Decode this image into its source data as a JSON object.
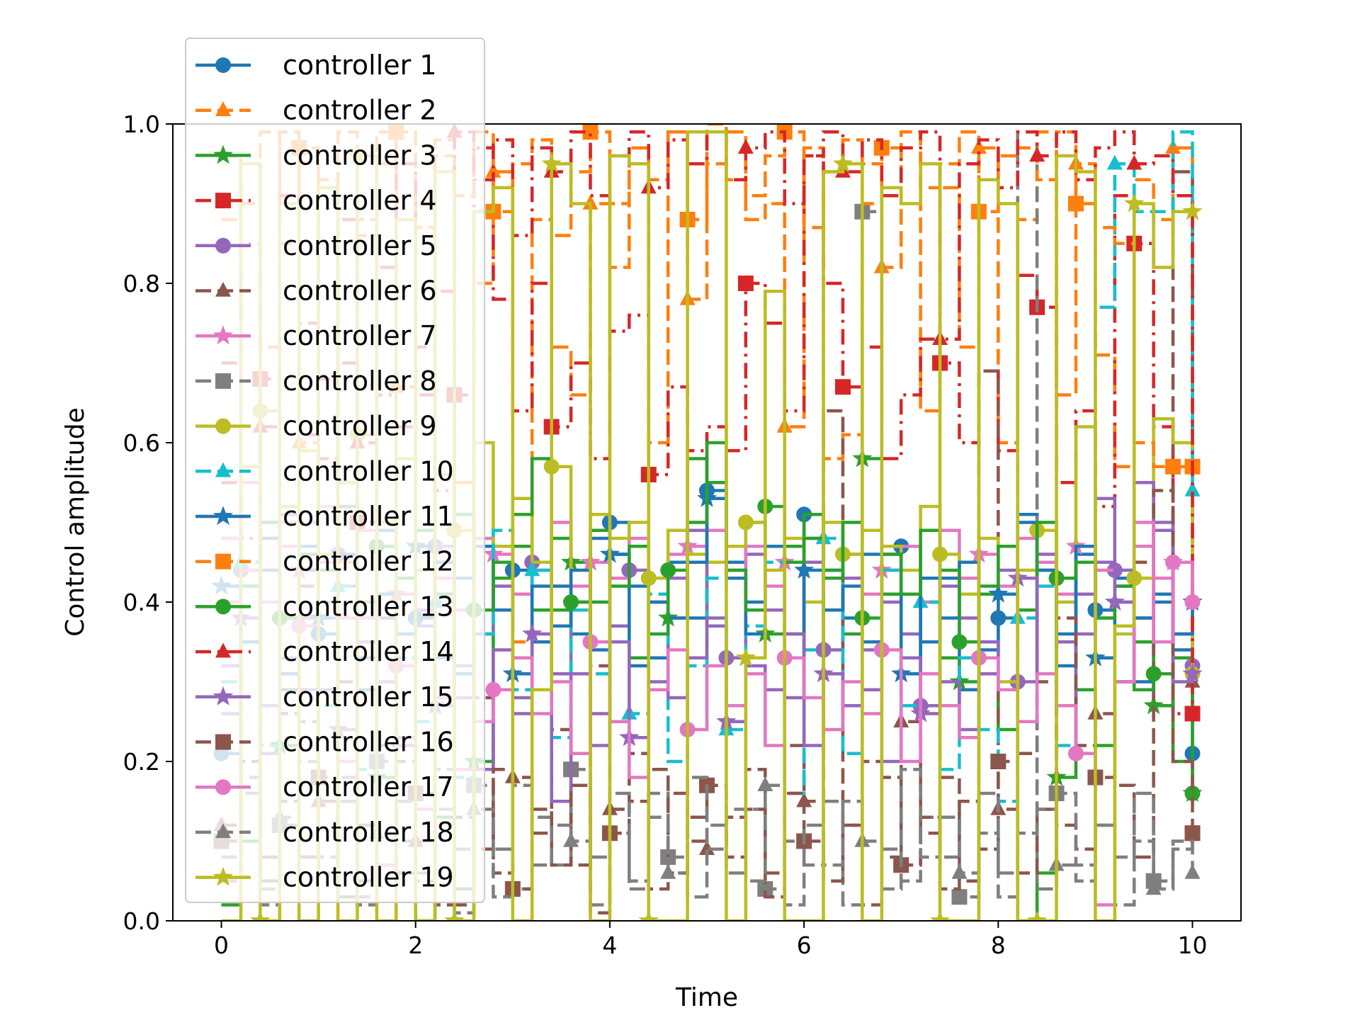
{
  "chart_data": {
    "type": "line",
    "title": "",
    "xlabel": "Time",
    "ylabel": "Control amplitude",
    "xlim": [
      -0.5,
      10.5
    ],
    "ylim": [
      0.0,
      1.0
    ],
    "xticks": [
      "0",
      "2",
      "4",
      "6",
      "8",
      "10"
    ],
    "yticks": [
      "0.0",
      "0.2",
      "0.4",
      "0.6",
      "0.8",
      "1.0"
    ],
    "step": "post",
    "grid": false,
    "legend_position": "upper left",
    "x": [
      0.0,
      0.2,
      0.4,
      0.6,
      0.8,
      1.0,
      1.2,
      1.4,
      1.6,
      1.8,
      2.0,
      2.2,
      2.4,
      2.6,
      2.8,
      3.0,
      3.2,
      3.4,
      3.6,
      3.8,
      4.0,
      4.2,
      4.4,
      4.6,
      4.8,
      5.0,
      5.2,
      5.4,
      5.6,
      5.8,
      6.0,
      6.2,
      6.4,
      6.6,
      6.8,
      7.0,
      7.2,
      7.4,
      7.6,
      7.8,
      8.0,
      8.2,
      8.4,
      8.6,
      8.8,
      9.0,
      9.2,
      9.4,
      9.6,
      9.8,
      10.0
    ],
    "series": [
      {
        "name": "controller 1",
        "color": "#1f77b4",
        "dash": "solid",
        "marker": "circle",
        "values": [
          0.21,
          0.38,
          0.44,
          0.29,
          0.47,
          0.36,
          0.42,
          0.33,
          0.49,
          0.41,
          0.38,
          0.45,
          0.31,
          0.47,
          0.39,
          0.44,
          0.35,
          0.42,
          0.36,
          0.48,
          0.5,
          0.42,
          0.33,
          0.45,
          0.38,
          0.54,
          0.45,
          0.4,
          0.47,
          0.36,
          0.51,
          0.44,
          0.38,
          0.46,
          0.41,
          0.47,
          0.35,
          0.43,
          0.29,
          0.41,
          0.38,
          0.51,
          0.44,
          0.32,
          0.46,
          0.39,
          0.43,
          0.3,
          0.41,
          0.34,
          0.21
        ]
      },
      {
        "name": "controller 2",
        "color": "#ff7f0e",
        "dash": "dash",
        "marker": "triangle",
        "values": [
          0.88,
          0.95,
          0.72,
          0.99,
          0.6,
          0.93,
          0.45,
          0.86,
          0.99,
          0.67,
          0.9,
          0.98,
          0.55,
          0.8,
          0.94,
          0.35,
          0.88,
          0.72,
          0.66,
          0.9,
          0.82,
          0.95,
          0.6,
          0.99,
          0.78,
          1.0,
          0.93,
          0.88,
          0.9,
          0.62,
          0.97,
          0.58,
          0.61,
          0.95,
          0.82,
          0.99,
          0.64,
          0.92,
          0.72,
          0.97,
          0.6,
          0.88,
          0.99,
          0.66,
          0.95,
          0.71,
          0.57,
          0.93,
          0.88,
          0.97,
          0.57
        ]
      },
      {
        "name": "controller 3",
        "color": "#2ca02c",
        "dash": "solid",
        "marker": "star",
        "values": [
          0.02,
          0.1,
          0.05,
          0.22,
          0.08,
          0.15,
          0.03,
          0.12,
          0.18,
          0.06,
          0.0,
          0.13,
          0.04,
          0.2,
          0.43,
          0.47,
          0.39,
          0.48,
          0.45,
          0.4,
          0.46,
          0.33,
          0.4,
          0.38,
          0.58,
          0.55,
          0.43,
          0.5,
          0.36,
          0.47,
          0.51,
          0.44,
          0.36,
          0.58,
          0.41,
          0.47,
          0.4,
          0.33,
          0.3,
          0.41,
          0.24,
          0.0,
          0.06,
          0.18,
          0.29,
          0.22,
          0.3,
          0.35,
          0.27,
          0.33,
          0.16
        ]
      },
      {
        "name": "controller 4",
        "color": "#d62728",
        "dash": "dashdot",
        "marker": "square",
        "values": [
          0.55,
          0.48,
          0.68,
          0.52,
          0.61,
          0.58,
          0.7,
          0.5,
          0.66,
          0.62,
          0.72,
          0.54,
          0.66,
          0.97,
          0.78,
          0.64,
          0.8,
          0.62,
          0.7,
          0.58,
          0.74,
          0.76,
          0.56,
          0.67,
          0.59,
          0.62,
          0.59,
          0.8,
          0.75,
          0.64,
          0.96,
          0.8,
          0.67,
          0.72,
          0.58,
          0.66,
          0.73,
          0.7,
          0.6,
          0.69,
          0.59,
          0.81,
          0.77,
          0.55,
          0.64,
          0.52,
          0.91,
          0.85,
          0.62,
          0.26,
          0.26
        ]
      },
      {
        "name": "controller 5",
        "color": "#9467bd",
        "dash": "solid",
        "marker": "circle",
        "values": [
          0.32,
          0.44,
          0.27,
          0.51,
          0.38,
          0.29,
          0.46,
          0.35,
          0.41,
          0.23,
          0.39,
          0.47,
          0.28,
          0.36,
          0.42,
          0.26,
          0.45,
          0.31,
          0.4,
          0.22,
          0.37,
          0.44,
          0.29,
          0.43,
          0.49,
          0.37,
          0.33,
          0.46,
          0.39,
          0.28,
          0.45,
          0.34,
          0.43,
          0.29,
          0.4,
          0.36,
          0.27,
          0.42,
          0.38,
          0.31,
          0.44,
          0.3,
          0.46,
          0.35,
          0.41,
          0.53,
          0.44,
          0.38,
          0.49,
          0.36,
          0.32
        ]
      },
      {
        "name": "controller 6",
        "color": "#8c564b",
        "dash": "dash",
        "marker": "triangle",
        "values": [
          0.12,
          0.35,
          0.08,
          0.26,
          0.42,
          0.15,
          0.3,
          0.05,
          0.38,
          0.2,
          0.1,
          0.33,
          0.02,
          0.28,
          0.06,
          0.18,
          0.11,
          0.24,
          0.07,
          0.32,
          0.14,
          0.21,
          0.04,
          0.16,
          0.1,
          0.09,
          0.13,
          0.19,
          0.06,
          0.22,
          0.15,
          0.64,
          0.12,
          0.2,
          0.08,
          0.25,
          0.11,
          0.18,
          0.05,
          0.69,
          0.14,
          0.21,
          0.3,
          0.12,
          0.09,
          0.26,
          0.17,
          0.08,
          0.35,
          0.94,
          0.3
        ]
      },
      {
        "name": "controller 7",
        "color": "#e377c2",
        "dash": "solid",
        "marker": "star",
        "values": [
          0.4,
          0.55,
          0.5,
          0.47,
          0.44,
          0.52,
          0.38,
          0.49,
          0.45,
          0.41,
          0.47,
          0.43,
          0.39,
          0.48,
          0.46,
          0.41,
          0.44,
          0.5,
          0.42,
          0.45,
          0.43,
          0.48,
          0.4,
          0.46,
          0.47,
          0.49,
          0.44,
          0.47,
          0.42,
          0.45,
          0.48,
          0.43,
          0.46,
          0.41,
          0.44,
          0.47,
          0.4,
          0.49,
          0.43,
          0.46,
          0.42,
          0.48,
          0.45,
          0.41,
          0.47,
          0.44,
          0.4,
          0.47,
          0.43,
          0.45,
          0.4
        ]
      },
      {
        "name": "controller 8",
        "color": "#7f7f7f",
        "dash": "dash",
        "marker": "square",
        "values": [
          0.05,
          0.18,
          0.02,
          0.12,
          0.25,
          0.08,
          0.15,
          0.03,
          0.2,
          0.1,
          0.06,
          0.14,
          0.01,
          0.17,
          0.09,
          0.04,
          0.13,
          0.07,
          0.19,
          0.02,
          0.11,
          0.05,
          0.16,
          0.08,
          0.03,
          0.12,
          0.06,
          0.14,
          0.04,
          0.1,
          0.07,
          0.15,
          0.02,
          0.89,
          0.09,
          0.05,
          0.13,
          0.08,
          0.03,
          0.11,
          0.06,
          0.99,
          0.04,
          0.16,
          0.07,
          0.12,
          0.02,
          0.1,
          0.05,
          0.09,
          0.11
        ]
      },
      {
        "name": "controller 9",
        "color": "#bcbd22",
        "dash": "solid",
        "marker": "circle",
        "values": [
          0.62,
          0.57,
          0.64,
          0.52,
          0.59,
          0.46,
          0.55,
          0.61,
          0.5,
          0.58,
          0.44,
          0.56,
          0.49,
          0.6,
          0.47,
          0.53,
          0.45,
          0.57,
          0.39,
          0.51,
          0.48,
          0.5,
          0.43,
          0.49,
          0.46,
          0.45,
          0.47,
          0.5,
          0.44,
          0.48,
          0.4,
          0.5,
          0.46,
          0.49,
          0.47,
          0.44,
          0.52,
          0.46,
          0.41,
          0.48,
          0.3,
          0.44,
          0.49,
          0.4,
          0.62,
          0.38,
          0.36,
          0.43,
          0.63,
          0.6,
          0.31
        ]
      },
      {
        "name": "controller 10",
        "color": "#17becf",
        "dash": "dash",
        "marker": "triangle",
        "values": [
          0.3,
          0.45,
          0.22,
          0.38,
          0.5,
          0.27,
          0.42,
          0.19,
          0.47,
          0.33,
          0.25,
          0.4,
          0.18,
          0.36,
          0.49,
          0.29,
          0.44,
          0.23,
          0.39,
          0.31,
          0.46,
          0.26,
          0.41,
          0.2,
          0.32,
          0.43,
          0.24,
          0.37,
          0.45,
          0.16,
          0.34,
          0.48,
          0.21,
          0.35,
          0.44,
          0.27,
          0.4,
          0.19,
          0.33,
          0.24,
          0.15,
          0.38,
          0.42,
          0.22,
          0.47,
          0.77,
          0.95,
          0.89,
          0.89,
          0.99,
          0.54
        ]
      },
      {
        "name": "controller 11",
        "color": "#1f77b4",
        "dash": "solid",
        "marker": "star",
        "values": [
          0.42,
          0.35,
          0.48,
          0.31,
          0.44,
          0.38,
          0.46,
          0.29,
          0.41,
          0.36,
          0.47,
          0.33,
          0.43,
          0.39,
          0.45,
          0.31,
          0.42,
          0.37,
          0.44,
          0.34,
          0.46,
          0.32,
          0.4,
          0.38,
          0.45,
          0.53,
          0.43,
          0.36,
          0.47,
          0.33,
          0.44,
          0.39,
          0.42,
          0.35,
          0.46,
          0.31,
          0.43,
          0.38,
          0.45,
          0.34,
          0.41,
          0.5,
          0.44,
          0.36,
          0.47,
          0.33,
          0.42,
          0.38,
          0.4,
          0.36,
          0.4
        ]
      },
      {
        "name": "controller 12",
        "color": "#ff7f0e",
        "dash": "dash",
        "marker": "square",
        "values": [
          0.96,
          0.9,
          0.99,
          0.85,
          0.97,
          0.92,
          0.99,
          0.88,
          0.95,
          0.99,
          0.87,
          0.96,
          0.91,
          0.99,
          0.89,
          0.95,
          0.98,
          0.86,
          0.94,
          0.99,
          0.9,
          0.97,
          0.93,
          0.99,
          0.88,
          0.95,
          0.99,
          0.91,
          0.96,
          0.99,
          0.87,
          0.94,
          0.98,
          0.9,
          0.97,
          0.99,
          0.92,
          0.95,
          0.99,
          0.89,
          0.96,
          0.97,
          0.93,
          0.99,
          0.9,
          0.87,
          0.85,
          0.6,
          0.57,
          0.57,
          0.57
        ]
      },
      {
        "name": "controller 13",
        "color": "#2ca02c",
        "dash": "solid",
        "marker": "circle",
        "values": [
          0.48,
          0.42,
          0.5,
          0.38,
          0.46,
          0.44,
          0.52,
          0.4,
          0.47,
          0.43,
          0.49,
          0.41,
          0.51,
          0.39,
          0.45,
          0.51,
          0.58,
          0.39,
          0.4,
          0.49,
          0.42,
          0.47,
          0.36,
          0.44,
          0.5,
          0.6,
          0.44,
          0.39,
          0.52,
          0.45,
          0.48,
          0.43,
          0.5,
          0.38,
          0.46,
          0.41,
          0.49,
          0.44,
          0.35,
          0.42,
          0.47,
          0.39,
          0.5,
          0.43,
          0.45,
          0.38,
          0.42,
          0.29,
          0.31,
          0.2,
          0.16
        ]
      },
      {
        "name": "controller 14",
        "color": "#d62728",
        "dash": "dashdot",
        "marker": "triangle",
        "values": [
          0.7,
          0.85,
          0.62,
          0.91,
          0.75,
          0.68,
          0.88,
          0.6,
          0.82,
          0.95,
          0.66,
          0.79,
          0.99,
          0.93,
          0.98,
          0.86,
          0.97,
          0.94,
          0.99,
          0.91,
          0.96,
          0.99,
          0.92,
          0.98,
          0.95,
          0.99,
          0.93,
          0.97,
          0.99,
          0.9,
          0.96,
          0.99,
          0.94,
          0.98,
          0.91,
          0.97,
          0.99,
          0.73,
          0.95,
          0.98,
          0.92,
          0.99,
          0.96,
          0.99,
          0.93,
          0.97,
          0.99,
          0.95,
          0.96,
          0.91,
          0.26
        ]
      },
      {
        "name": "controller 15",
        "color": "#9467bd",
        "dash": "solid",
        "marker": "star",
        "values": [
          0.26,
          0.38,
          0.21,
          0.33,
          0.29,
          0.4,
          0.24,
          0.35,
          0.3,
          0.22,
          0.37,
          0.27,
          0.32,
          0.19,
          0.34,
          0.28,
          0.36,
          0.15,
          0.31,
          0.26,
          0.35,
          0.23,
          0.3,
          0.28,
          0.33,
          0.38,
          0.25,
          0.32,
          0.29,
          0.36,
          0.22,
          0.31,
          0.27,
          0.34,
          0.2,
          0.33,
          0.26,
          0.3,
          0.24,
          0.35,
          0.29,
          0.43,
          0.31,
          0.27,
          0.36,
          0.45,
          0.4,
          0.55,
          0.5,
          0.3,
          0.31
        ]
      },
      {
        "name": "controller 16",
        "color": "#8c564b",
        "dash": "dash",
        "marker": "square",
        "values": [
          0.1,
          0.2,
          0.05,
          0.15,
          0.08,
          0.18,
          0.03,
          0.12,
          0.22,
          0.06,
          0.16,
          0.02,
          0.13,
          0.09,
          0.19,
          0.04,
          0.14,
          0.07,
          0.17,
          0.01,
          0.11,
          0.15,
          0.19,
          0.06,
          0.13,
          0.17,
          0.08,
          0.14,
          0.03,
          0.16,
          0.1,
          0.05,
          0.12,
          0.02,
          0.18,
          0.07,
          0.13,
          0.04,
          0.15,
          0.09,
          0.2,
          0.06,
          0.14,
          0.38,
          0.22,
          0.18,
          0.3,
          0.45,
          0.54,
          0.2,
          0.11
        ]
      },
      {
        "name": "controller 17",
        "color": "#e377c2",
        "dash": "solid",
        "marker": "circle",
        "values": [
          0.48,
          0.44,
          0.4,
          0.5,
          0.37,
          0.45,
          0.2,
          0.38,
          0.07,
          0.32,
          0.14,
          0.28,
          0.19,
          0.25,
          0.29,
          0.33,
          0.26,
          0.3,
          0.21,
          0.35,
          0.25,
          0.18,
          0.29,
          0.34,
          0.24,
          0.32,
          0.27,
          0.31,
          0.22,
          0.33,
          0.28,
          0.24,
          0.3,
          0.26,
          0.34,
          0.2,
          0.31,
          0.27,
          0.23,
          0.33,
          0.29,
          0.25,
          0.31,
          0.27,
          0.21,
          0.02,
          0.3,
          0.5,
          0.35,
          0.45,
          0.4
        ]
      },
      {
        "name": "controller 18",
        "color": "#7f7f7f",
        "dash": "dash",
        "marker": "triangle",
        "values": [
          0.08,
          0.16,
          0.04,
          0.13,
          0.2,
          0.06,
          0.18,
          0.02,
          0.11,
          0.15,
          0.05,
          0.19,
          0.09,
          0.14,
          0.03,
          0.17,
          0.07,
          0.12,
          0.1,
          0.08,
          0.16,
          0.04,
          0.13,
          0.06,
          0.18,
          0.09,
          0.14,
          0.05,
          0.17,
          0.02,
          0.12,
          0.07,
          0.15,
          0.1,
          0.04,
          0.19,
          0.08,
          0.13,
          0.06,
          0.16,
          0.03,
          0.11,
          0.14,
          0.07,
          0.05,
          0.12,
          0.08,
          0.16,
          0.04,
          0.1,
          0.06
        ]
      },
      {
        "name": "controller 19",
        "color": "#bcbd22",
        "dash": "solid",
        "marker": "star",
        "values": [
          0.0,
          0.95,
          0.0,
          0.9,
          0.0,
          0.92,
          0.0,
          0.96,
          0.0,
          0.88,
          0.0,
          0.94,
          0.0,
          0.89,
          0.92,
          0.0,
          0.29,
          0.95,
          0.9,
          0.0,
          0.96,
          0.95,
          0.0,
          0.0,
          0.99,
          0.99,
          0.0,
          0.33,
          0.79,
          0.0,
          0.0,
          0.94,
          0.95,
          0.0,
          0.92,
          0.9,
          0.95,
          0.0,
          0.0,
          0.93,
          0.9,
          0.0,
          0.0,
          0.96,
          0.94,
          0.0,
          0.37,
          0.9,
          0.82,
          0.89,
          0.89
        ]
      }
    ]
  }
}
